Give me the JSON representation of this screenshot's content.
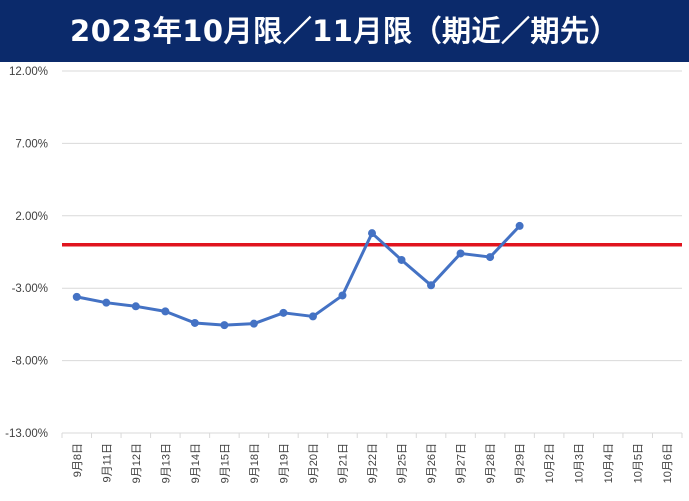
{
  "header": {
    "title": "2023年10月限／11月限（期近／期先）"
  },
  "colors": {
    "banner": "#0b2a6b",
    "series": "#4472c4",
    "reference_line": "#e0141e",
    "grid": "#d9d9d9",
    "text": "#404040"
  },
  "chart_data": {
    "type": "line",
    "title": "",
    "xlabel": "",
    "ylabel": "",
    "ylim": [
      -13,
      12
    ],
    "yticks": [
      12,
      7,
      2,
      -3,
      -8,
      -13
    ],
    "ytick_labels": [
      "12.00%",
      "7.00%",
      "2.00%",
      "-3.00%",
      "-8.00%",
      "-13.00%"
    ],
    "grid": true,
    "legend": "none",
    "categories": [
      "9月8日",
      "9月11日",
      "9月12日",
      "9月13日",
      "9月14日",
      "9月15日",
      "9月18日",
      "9月19日",
      "9月20日",
      "9月21日",
      "9月22日",
      "9月25日",
      "9月26日",
      "9月27日",
      "9月28日",
      "9月29日",
      "10月2日",
      "10月3日",
      "10月4日",
      "10月5日",
      "10月6日"
    ],
    "series": [
      {
        "values": [
          -3.6,
          -4.0,
          -4.25,
          -4.6,
          -5.4,
          -5.55,
          -5.45,
          -4.7,
          -4.95,
          -3.5,
          0.8,
          -1.05,
          -2.8,
          -0.6,
          -0.85,
          1.3,
          null,
          null,
          null,
          null,
          null
        ]
      }
    ],
    "reference_line": {
      "y": 0
    }
  }
}
